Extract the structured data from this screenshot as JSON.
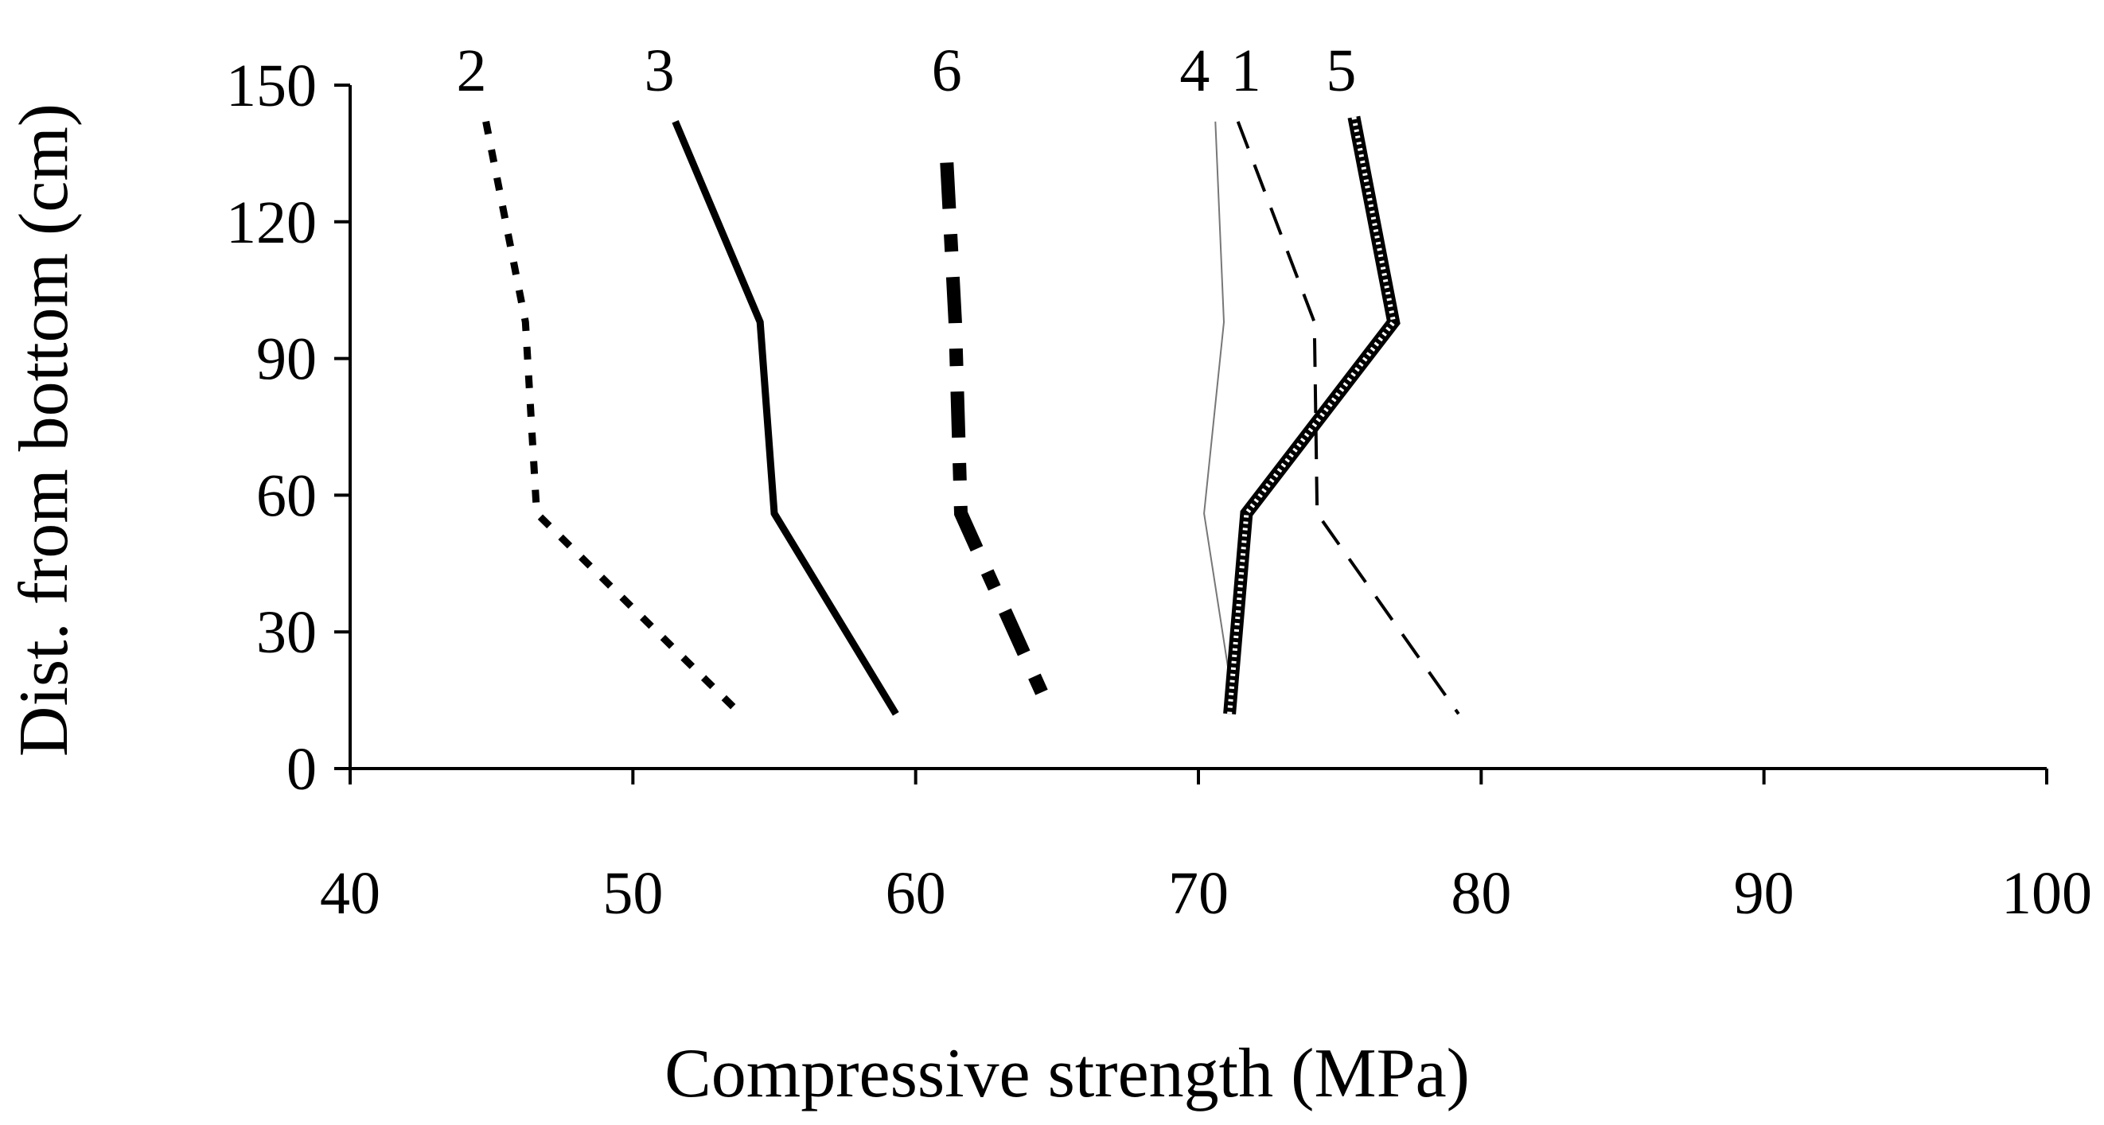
{
  "chart_data": {
    "type": "line",
    "title": "",
    "xlabel": "Compressive strength (MPa)",
    "ylabel": "Dist. from bottom (cm)",
    "xlim": [
      40,
      100
    ],
    "ylim": [
      0,
      150
    ],
    "xticks": [
      "40",
      "50",
      "60",
      "70",
      "80",
      "90",
      "100"
    ],
    "yticks": [
      "0",
      "30",
      "60",
      "90",
      "120",
      "150"
    ],
    "grid": false,
    "legend": "inline labels at top of each line",
    "series": [
      {
        "name": "2",
        "style": "dotted-bold",
        "points": [
          [
            44.8,
            142
          ],
          [
            46.2,
            98
          ],
          [
            46.6,
            56
          ],
          [
            53.8,
            12
          ]
        ]
      },
      {
        "name": "3",
        "style": "solid",
        "points": [
          [
            51.5,
            142
          ],
          [
            54.5,
            98
          ],
          [
            55,
            56
          ],
          [
            59.3,
            12
          ]
        ]
      },
      {
        "name": "6",
        "style": "dash-dot-heavy",
        "points": [
          [
            61.1,
            133
          ],
          [
            61.4,
            98
          ],
          [
            61.6,
            56
          ],
          [
            64.8,
            12
          ]
        ]
      },
      {
        "name": "4",
        "style": "thin",
        "points": [
          [
            70.6,
            142
          ],
          [
            70.9,
            98
          ],
          [
            70.2,
            56
          ],
          [
            71.3,
            12
          ]
        ]
      },
      {
        "name": "1",
        "style": "dashed",
        "points": [
          [
            71.4,
            142
          ],
          [
            74.1,
            98
          ],
          [
            74.2,
            56
          ],
          [
            79.2,
            12
          ]
        ]
      },
      {
        "name": "5",
        "style": "hatched",
        "points": [
          [
            75.5,
            143
          ],
          [
            76.9,
            98
          ],
          [
            71.7,
            56
          ],
          [
            71.1,
            12
          ]
        ]
      }
    ]
  }
}
